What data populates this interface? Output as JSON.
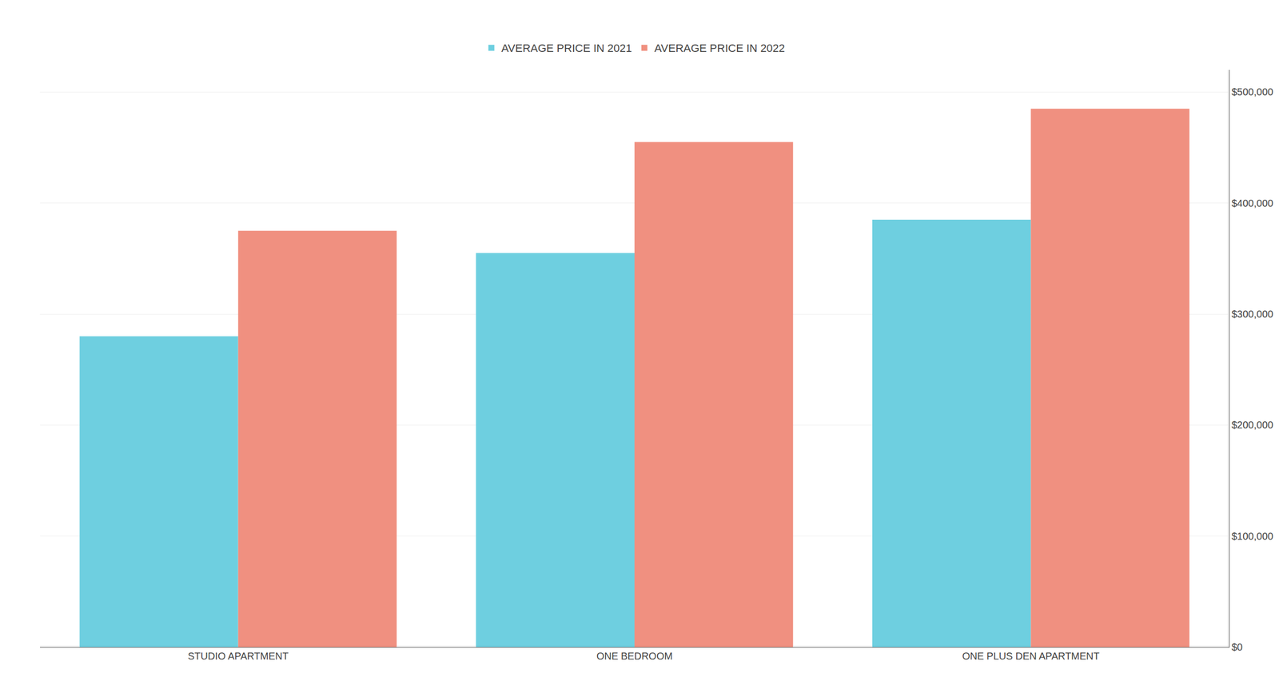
{
  "chart_data": {
    "type": "bar",
    "categories": [
      "STUDIO APARTMENT",
      "ONE BEDROOM",
      "ONE PLUS DEN APARTMENT"
    ],
    "series": [
      {
        "name": "AVERAGE PRICE IN 2021",
        "color": "#6ecfe0",
        "values": [
          280000,
          355000,
          385000
        ]
      },
      {
        "name": "AVERAGE PRICE IN 2022",
        "color": "#f09080",
        "values": [
          375000,
          455000,
          485000
        ]
      }
    ],
    "ylim": [
      0,
      520000
    ],
    "yticks": [
      {
        "value": 0,
        "label": "$0"
      },
      {
        "value": 100000,
        "label": "$100,000"
      },
      {
        "value": 200000,
        "label": "$200,000"
      },
      {
        "value": 300000,
        "label": "$300,000"
      },
      {
        "value": 400000,
        "label": "$400,000"
      },
      {
        "value": 500000,
        "label": "$500,000"
      }
    ],
    "grid": true,
    "legend": "top"
  }
}
